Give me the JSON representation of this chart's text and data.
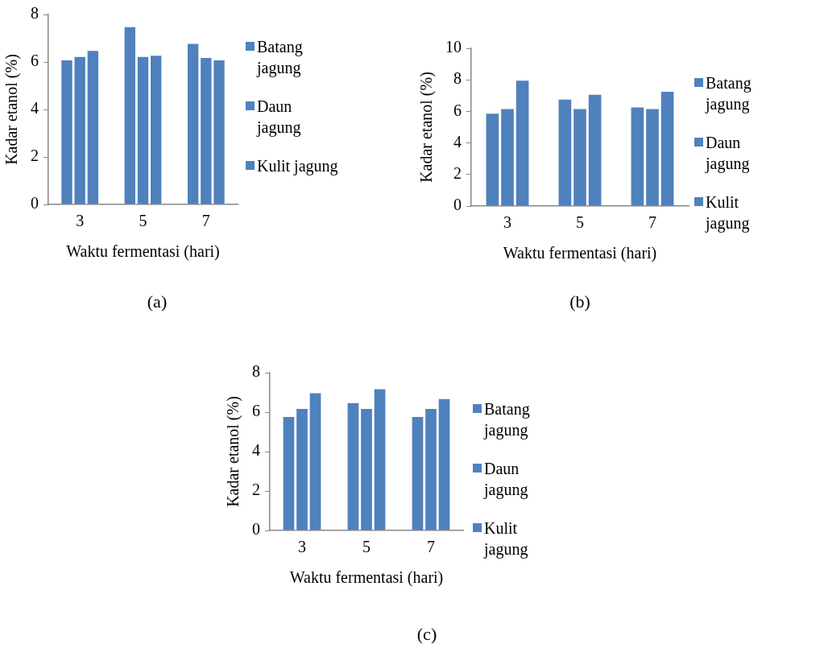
{
  "chart_data": [
    {
      "type": "bar",
      "categories": [
        "3",
        "5",
        "7"
      ],
      "xlabel": "Waktu fermentasi (hari)",
      "ylabel": "Kadar etanol (%)",
      "ylim": [
        0,
        8
      ],
      "yticks": [
        0,
        2,
        4,
        6,
        8
      ],
      "grid": false,
      "legend": "right",
      "annotations": [
        "(a)"
      ],
      "series": [
        {
          "name": "Batang jagung",
          "color": "#4f81bd",
          "values": [
            6.1,
            7.5,
            6.8
          ]
        },
        {
          "name": "Daun jagung",
          "color": "#4f81bd",
          "values": [
            6.25,
            6.25,
            6.2
          ]
        },
        {
          "name": "Kulit jagung",
          "color": "#4f81bd",
          "values": [
            6.5,
            6.3,
            6.1
          ]
        }
      ]
    },
    {
      "type": "bar",
      "categories": [
        "3",
        "5",
        "7"
      ],
      "xlabel": "Waktu fermentasi (hari)",
      "ylabel": "Kadar etanol (%)",
      "ylim": [
        0,
        10
      ],
      "yticks": [
        0,
        2,
        4,
        6,
        8,
        10
      ],
      "grid": false,
      "legend": "right",
      "annotations": [
        "(b)"
      ],
      "series": [
        {
          "name": "Batang jagung",
          "color": "#4f81bd",
          "values": [
            5.9,
            6.8,
            6.3
          ]
        },
        {
          "name": "Daun jagung",
          "color": "#4f81bd",
          "values": [
            6.2,
            6.2,
            6.2
          ]
        },
        {
          "name": "Kulit jagung",
          "color": "#4f81bd",
          "values": [
            8.0,
            7.1,
            7.3
          ]
        }
      ]
    },
    {
      "type": "bar",
      "categories": [
        "3",
        "5",
        "7"
      ],
      "xlabel": "Waktu fermentasi (hari)",
      "ylabel": "Kadar etanol (%)",
      "ylim": [
        0,
        8
      ],
      "yticks": [
        0,
        2,
        4,
        6,
        8
      ],
      "grid": false,
      "legend": "right",
      "annotations": [
        "(c)"
      ],
      "series": [
        {
          "name": "Batang jagung",
          "color": "#4f81bd",
          "values": [
            5.8,
            6.5,
            5.8
          ]
        },
        {
          "name": "Daun jagung",
          "color": "#4f81bd",
          "values": [
            6.2,
            6.2,
            6.2
          ]
        },
        {
          "name": "Kulit jagung",
          "color": "#4f81bd",
          "values": [
            7.0,
            7.2,
            6.7
          ]
        }
      ]
    }
  ]
}
